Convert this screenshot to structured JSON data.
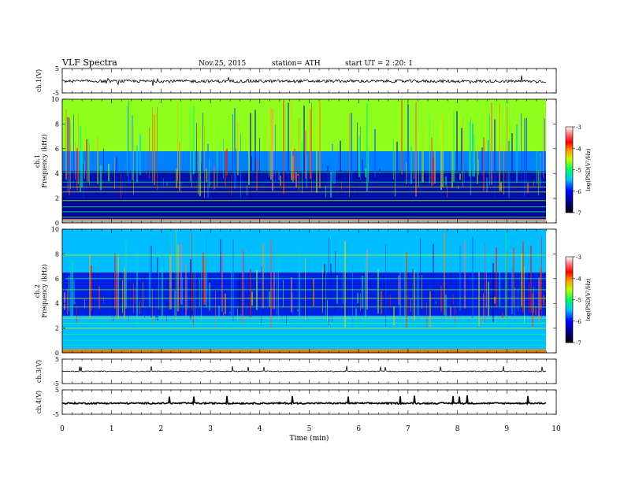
{
  "header": {
    "title": "VLF  Spectra",
    "date": "Nov.25, 2015",
    "station": "station= ATH",
    "start": "start  UT =  2 :20: 1"
  },
  "chart_data": [
    {
      "type": "line",
      "panel": "ch.1",
      "ylabel": "ch.1(V)",
      "ylim": [
        -5,
        5
      ],
      "yticks": [
        "5",
        "-5"
      ],
      "x_range_min": [
        0,
        9.8
      ],
      "series": [
        {
          "values_note": "",
          "values": [
            -0.2,
            -0.1,
            -0.3,
            0.0,
            -0.2
          ]
        }
      ]
    },
    {
      "type": "heatmap",
      "panel": "ch.1",
      "ylabel": "ch.1\nFrequency  (kHz)",
      "ylim": [
        0,
        10
      ],
      "yticks": [
        "0",
        "2",
        "4",
        "6",
        "8",
        "10"
      ],
      "colorbar": {
        "label": "log(PSD(V²/Hz)",
        "ticks": [
          "-3",
          "-4",
          "-5",
          "-6",
          "-7"
        ],
        "range": [
          -7,
          -3
        ]
      },
      "bands_khz": [
        {
          "from": 0,
          "to": 0.3,
          "level": -3.4
        },
        {
          "from": 0.3,
          "to": 2.0,
          "level": -6.5
        },
        {
          "from": 2.0,
          "to": 4.2,
          "level": -6.4
        },
        {
          "from": 4.2,
          "to": 5.8,
          "level": -5.8
        },
        {
          "from": 5.8,
          "to": 10,
          "level": -4.9
        }
      ]
    },
    {
      "type": "heatmap",
      "panel": "ch.2",
      "ylabel": "ch.2\nFrequency  (kHz)",
      "ylim": [
        0,
        10
      ],
      "yticks": [
        "0",
        "2",
        "4",
        "6",
        "8",
        "10"
      ],
      "colorbar": {
        "label": "log(PSD(V²/Hz)",
        "ticks": [
          "-3",
          "-4",
          "-5",
          "-6",
          "-7"
        ],
        "range": [
          -7,
          -3
        ]
      },
      "bands_khz": [
        {
          "from": 0,
          "to": 0.3,
          "level": -4.2
        },
        {
          "from": 0.3,
          "to": 3.0,
          "level": -5.6
        },
        {
          "from": 3.0,
          "to": 6.5,
          "level": -6.2
        },
        {
          "from": 6.5,
          "to": 10,
          "level": -5.6
        }
      ]
    },
    {
      "type": "line",
      "panel": "ch.3",
      "ylabel": "ch.3(V)",
      "ylim": [
        -5,
        5
      ],
      "yticks": [
        "5",
        "-5"
      ],
      "series": [
        {
          "values": [
            0,
            0
          ]
        }
      ]
    },
    {
      "type": "line",
      "panel": "ch.4",
      "ylabel": "ch.4(V)",
      "ylim": [
        -5,
        5
      ],
      "yticks": [
        "5",
        "-5"
      ],
      "xlabel": "Time  (min)",
      "xlim": [
        0,
        10
      ],
      "xticks": [
        "0",
        "1",
        "2",
        "3",
        "4",
        "5",
        "6",
        "7",
        "8",
        "9",
        "10"
      ],
      "series": [
        {
          "values": [
            -0.5,
            -0.5
          ]
        }
      ]
    }
  ]
}
